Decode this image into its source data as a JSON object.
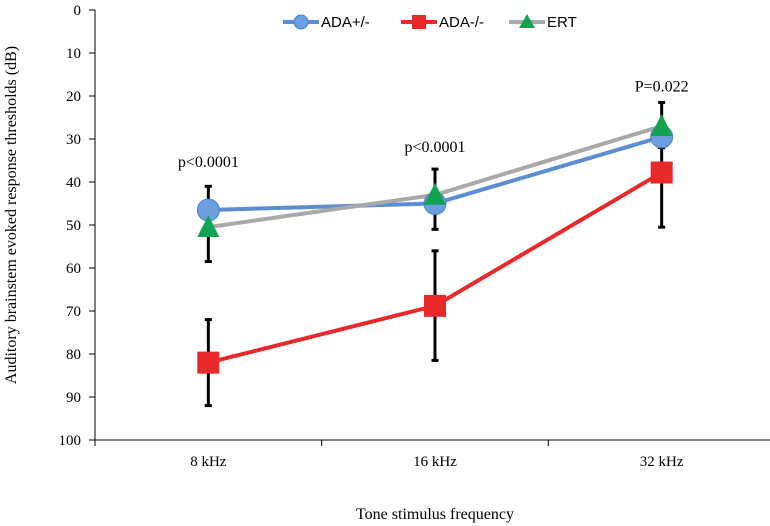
{
  "chart_data": {
    "type": "line",
    "xlabel": "Tone stimulus frequency",
    "ylabel": "Auditory brainstem evoked response thresholds (dB)",
    "categories": [
      "8 kHz",
      "16 kHz",
      "32 kHz"
    ],
    "ylim": [
      0,
      100
    ],
    "y_inverted": true,
    "yticks": [
      0,
      10,
      20,
      30,
      40,
      50,
      60,
      70,
      80,
      90,
      100
    ],
    "ytick_labels": [
      "0",
      "10",
      "20",
      "30",
      "40",
      "50",
      "60",
      "70",
      "80",
      "90",
      "100"
    ],
    "grid": false,
    "legend_position": "top-center",
    "series": [
      {
        "name": "ADA+/-",
        "values": [
          46.5,
          45,
          29.5
        ],
        "error_low": [
          null,
          null,
          null
        ],
        "error_high": [
          null,
          null,
          null
        ],
        "line_color": "#5b8ed0",
        "marker_color": "#6a9fe0",
        "marker": "circle"
      },
      {
        "name": "ADA-/-",
        "values": [
          82,
          68.8,
          37.8
        ],
        "error_low": [
          72,
          56,
          30
        ],
        "error_high": [
          92,
          81.5,
          50.5
        ],
        "line_color": "#e8282a",
        "marker_color": "#e8282a",
        "marker": "square"
      },
      {
        "name": "ERT",
        "values": [
          50.5,
          43,
          27
        ],
        "error_low": [
          41,
          37,
          21.5
        ],
        "error_high": [
          58.5,
          51,
          32
        ],
        "line_color": "#a9a9a9",
        "marker_color": "#11a351",
        "marker": "triangle"
      }
    ],
    "annotations": [
      {
        "text": "p<0.0001",
        "category_index": 0,
        "y": 36.5
      },
      {
        "text": "p<0.0001",
        "category_index": 1,
        "y": 33
      },
      {
        "text": "P=0.022",
        "category_index": 2,
        "y": 19
      }
    ]
  }
}
